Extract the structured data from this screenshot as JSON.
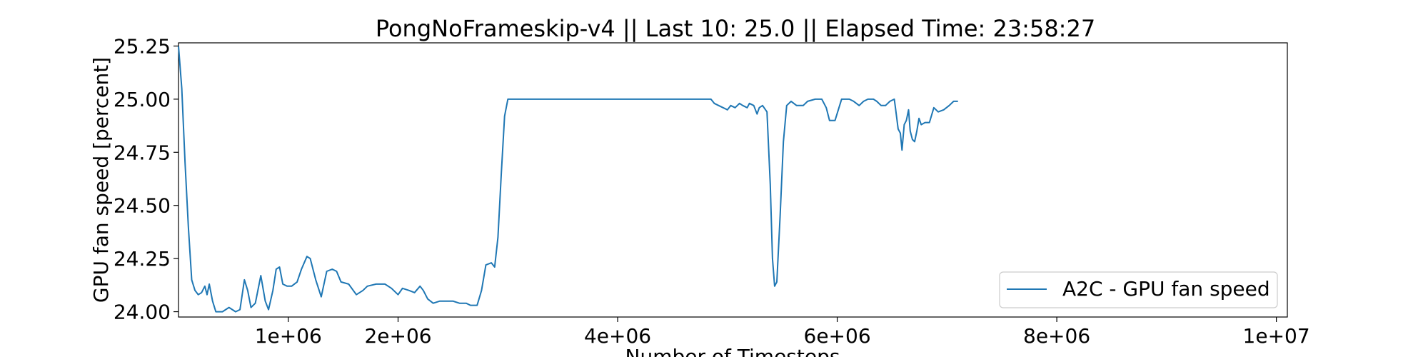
{
  "chart_data": {
    "type": "line",
    "title": "PongNoFrameskip-v4 || Last 10: 25.0 || Elapsed Time: 23:58:27",
    "xlabel": "Number of Timesteps",
    "ylabel": "GPU fan speed [percent]",
    "xlim": [
      0,
      10100000
    ],
    "ylim": [
      23.975,
      25.265
    ],
    "x_ticks": [
      {
        "value": 1000000,
        "label": "1e+06"
      },
      {
        "value": 2000000,
        "label": "2e+06"
      },
      {
        "value": 4000000,
        "label": "4e+06"
      },
      {
        "value": 6000000,
        "label": "6e+06"
      },
      {
        "value": 8000000,
        "label": "8e+06"
      },
      {
        "value": 10000000,
        "label": "1e+07"
      }
    ],
    "y_ticks": [
      {
        "value": 24.0,
        "label": "24.00"
      },
      {
        "value": 24.25,
        "label": "24.25"
      },
      {
        "value": 24.5,
        "label": "24.50"
      },
      {
        "value": 24.75,
        "label": "24.75"
      },
      {
        "value": 25.0,
        "label": "25.00"
      },
      {
        "value": 25.25,
        "label": "25.25"
      }
    ],
    "grid": false,
    "legend_position": "bottom-right",
    "series": [
      {
        "name": "A2C - GPU fan speed",
        "color": "#1f77b4",
        "points": [
          [
            0,
            25.25
          ],
          [
            30000,
            25.05
          ],
          [
            60000,
            24.7
          ],
          [
            90000,
            24.4
          ],
          [
            120000,
            24.15
          ],
          [
            150000,
            24.1
          ],
          [
            180000,
            24.08
          ],
          [
            210000,
            24.09
          ],
          [
            240000,
            24.12
          ],
          [
            260000,
            24.08
          ],
          [
            280000,
            24.13
          ],
          [
            310000,
            24.05
          ],
          [
            340000,
            24.0
          ],
          [
            400000,
            24.0
          ],
          [
            460000,
            24.02
          ],
          [
            520000,
            24.0
          ],
          [
            560000,
            24.01
          ],
          [
            600000,
            24.15
          ],
          [
            630000,
            24.1
          ],
          [
            660000,
            24.02
          ],
          [
            700000,
            24.04
          ],
          [
            750000,
            24.17
          ],
          [
            790000,
            24.05
          ],
          [
            820000,
            24.01
          ],
          [
            860000,
            24.1
          ],
          [
            890000,
            24.2
          ],
          [
            920000,
            24.21
          ],
          [
            950000,
            24.13
          ],
          [
            990000,
            24.12
          ],
          [
            1030000,
            24.12
          ],
          [
            1080000,
            24.14
          ],
          [
            1120000,
            24.2
          ],
          [
            1170000,
            24.26
          ],
          [
            1200000,
            24.25
          ],
          [
            1250000,
            24.15
          ],
          [
            1300000,
            24.07
          ],
          [
            1350000,
            24.19
          ],
          [
            1400000,
            24.2
          ],
          [
            1440000,
            24.19
          ],
          [
            1480000,
            24.14
          ],
          [
            1550000,
            24.13
          ],
          [
            1620000,
            24.08
          ],
          [
            1680000,
            24.1
          ],
          [
            1720000,
            24.12
          ],
          [
            1800000,
            24.13
          ],
          [
            1880000,
            24.13
          ],
          [
            1940000,
            24.11
          ],
          [
            2000000,
            24.08
          ],
          [
            2040000,
            24.11
          ],
          [
            2100000,
            24.1
          ],
          [
            2150000,
            24.09
          ],
          [
            2200000,
            24.12
          ],
          [
            2230000,
            24.1
          ],
          [
            2270000,
            24.06
          ],
          [
            2320000,
            24.04
          ],
          [
            2380000,
            24.05
          ],
          [
            2440000,
            24.05
          ],
          [
            2500000,
            24.05
          ],
          [
            2560000,
            24.04
          ],
          [
            2620000,
            24.04
          ],
          [
            2660000,
            24.03
          ],
          [
            2720000,
            24.03
          ],
          [
            2760000,
            24.1
          ],
          [
            2800000,
            24.22
          ],
          [
            2850000,
            24.23
          ],
          [
            2880000,
            24.21
          ],
          [
            2910000,
            24.35
          ],
          [
            2940000,
            24.65
          ],
          [
            2970000,
            24.92
          ],
          [
            3000000,
            25.0
          ],
          [
            3500000,
            25.0
          ],
          [
            4000000,
            25.0
          ],
          [
            4500000,
            25.0
          ],
          [
            4850000,
            25.0
          ],
          [
            4880000,
            24.98
          ],
          [
            4920000,
            24.97
          ],
          [
            4960000,
            24.96
          ],
          [
            5000000,
            24.95
          ],
          [
            5030000,
            24.97
          ],
          [
            5070000,
            24.96
          ],
          [
            5110000,
            24.98
          ],
          [
            5140000,
            24.97
          ],
          [
            5180000,
            24.96
          ],
          [
            5200000,
            24.98
          ],
          [
            5240000,
            24.97
          ],
          [
            5270000,
            24.93
          ],
          [
            5290000,
            24.96
          ],
          [
            5320000,
            24.97
          ],
          [
            5360000,
            24.94
          ],
          [
            5390000,
            24.6
          ],
          [
            5410000,
            24.25
          ],
          [
            5430000,
            24.12
          ],
          [
            5450000,
            24.14
          ],
          [
            5480000,
            24.45
          ],
          [
            5510000,
            24.8
          ],
          [
            5540000,
            24.97
          ],
          [
            5580000,
            24.99
          ],
          [
            5630000,
            24.97
          ],
          [
            5690000,
            24.97
          ],
          [
            5730000,
            24.99
          ],
          [
            5800000,
            25.0
          ],
          [
            5860000,
            25.0
          ],
          [
            5900000,
            24.96
          ],
          [
            5930000,
            24.9
          ],
          [
            5980000,
            24.9
          ],
          [
            6010000,
            24.95
          ],
          [
            6040000,
            25.0
          ],
          [
            6110000,
            25.0
          ],
          [
            6150000,
            24.99
          ],
          [
            6200000,
            24.97
          ],
          [
            6240000,
            24.99
          ],
          [
            6280000,
            25.0
          ],
          [
            6330000,
            25.0
          ],
          [
            6360000,
            24.99
          ],
          [
            6400000,
            24.97
          ],
          [
            6440000,
            24.97
          ],
          [
            6480000,
            24.99
          ],
          [
            6520000,
            25.0
          ],
          [
            6530000,
            24.96
          ],
          [
            6555000,
            24.86
          ],
          [
            6575000,
            24.84
          ],
          [
            6590000,
            24.76
          ],
          [
            6610000,
            24.88
          ],
          [
            6630000,
            24.9
          ],
          [
            6650000,
            24.95
          ],
          [
            6665000,
            24.85
          ],
          [
            6685000,
            24.81
          ],
          [
            6705000,
            24.8
          ],
          [
            6725000,
            24.85
          ],
          [
            6745000,
            24.91
          ],
          [
            6765000,
            24.88
          ],
          [
            6800000,
            24.89
          ],
          [
            6840000,
            24.89
          ],
          [
            6880000,
            24.96
          ],
          [
            6920000,
            24.94
          ],
          [
            6970000,
            24.95
          ],
          [
            7020000,
            24.97
          ],
          [
            7060000,
            24.99
          ],
          [
            7100000,
            24.99
          ]
        ]
      }
    ]
  }
}
